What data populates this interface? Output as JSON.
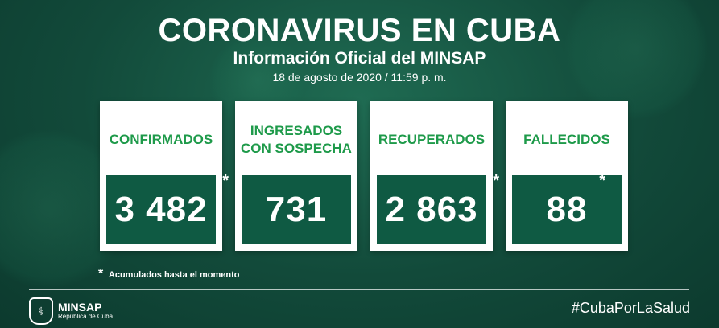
{
  "header": {
    "title": "CORONAVIRUS EN CUBA",
    "subtitle": "Información Oficial del MINSAP",
    "date": "18 de agosto de 2020 / 11:59 p. m."
  },
  "cards": [
    {
      "label": "CONFIRMADOS",
      "value": "3 482",
      "asterisk": "*"
    },
    {
      "label": "INGRESADOS CON SOSPECHA",
      "value": "731",
      "asterisk": ""
    },
    {
      "label": "RECUPERADOS",
      "value": "2 863",
      "asterisk": "*"
    },
    {
      "label": "FALLECIDOS",
      "value": "88",
      "asterisk": "*"
    }
  ],
  "footnote": {
    "star": "*",
    "text": "Acumulados hasta el momento"
  },
  "footer": {
    "logo_name": "MINSAP",
    "logo_sub": "República de Cuba",
    "hashtag": "#CubaPorLaSalud"
  },
  "colors": {
    "accent_green": "#1e9a4a",
    "dark_green": "#0f5a43"
  }
}
